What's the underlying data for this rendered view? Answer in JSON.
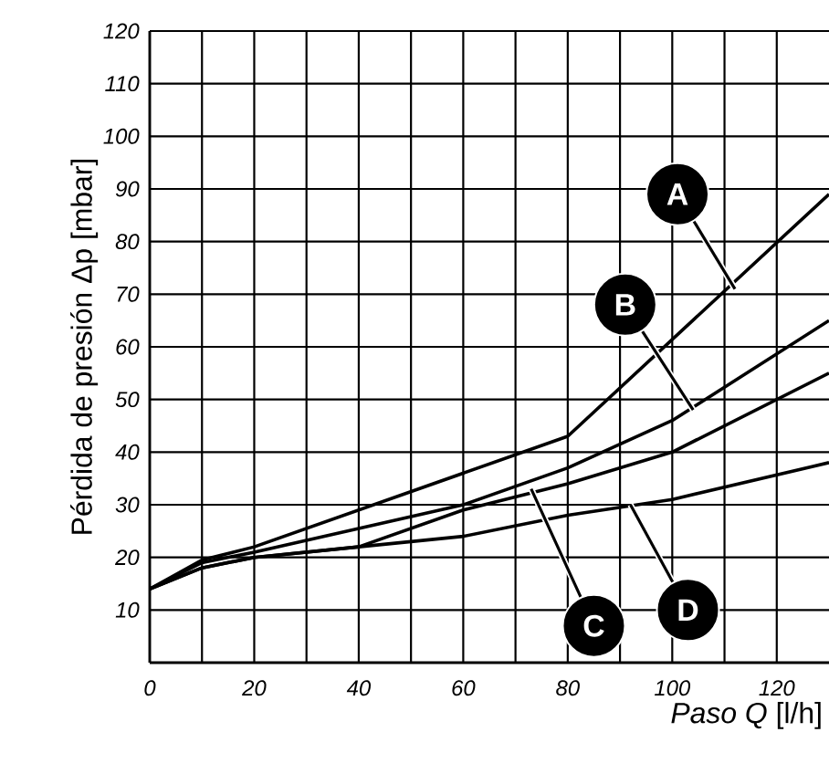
{
  "chart_data": {
    "type": "line",
    "xlabel": "*Paso Q* [l/h]",
    "ylabel": "Pérdida de presión Δp [mbar]",
    "xlim": [
      0,
      130
    ],
    "ylim": [
      0,
      120
    ],
    "xticks": [
      0,
      {
        "value": 10,
        "label": null
      },
      20,
      {
        "value": 30,
        "label": null
      },
      40,
      {
        "value": 50,
        "label": null
      },
      60,
      {
        "value": 70,
        "label": null
      },
      80,
      {
        "value": 90,
        "label": null
      },
      100,
      {
        "value": 110,
        "label": null
      },
      120
    ],
    "yticks": [
      10,
      20,
      30,
      40,
      50,
      60,
      70,
      80,
      90,
      100,
      110,
      120
    ],
    "grid": true,
    "series": [
      {
        "color": "#000000",
        "x": [
          0,
          10,
          20,
          80,
          130
        ],
        "values": [
          14,
          19.5,
          22,
          43,
          89
        ]
      },
      {
        "color": "#000000",
        "x": [
          0,
          10,
          20,
          60,
          80,
          100,
          130
        ],
        "values": [
          14,
          19,
          21,
          30,
          37,
          46,
          65
        ]
      },
      {
        "color": "#000000",
        "x": [
          0,
          10,
          20,
          40,
          60,
          80,
          100,
          130
        ],
        "values": [
          14,
          18,
          20,
          22,
          29,
          34,
          40,
          55
        ]
      },
      {
        "color": "#000000",
        "x": [
          0,
          10,
          20,
          40,
          60,
          80,
          100,
          130
        ],
        "values": [
          14,
          18,
          20,
          22,
          24,
          28,
          31,
          38
        ]
      }
    ],
    "annotations": [
      {
        "text": "A",
        "x": 112,
        "y": 71
      },
      {
        "text": "B",
        "x": 104,
        "y": 48
      },
      {
        "text": "C",
        "x": 73,
        "y": 33
      },
      {
        "text": "D",
        "x": 92,
        "y": 30
      }
    ]
  }
}
